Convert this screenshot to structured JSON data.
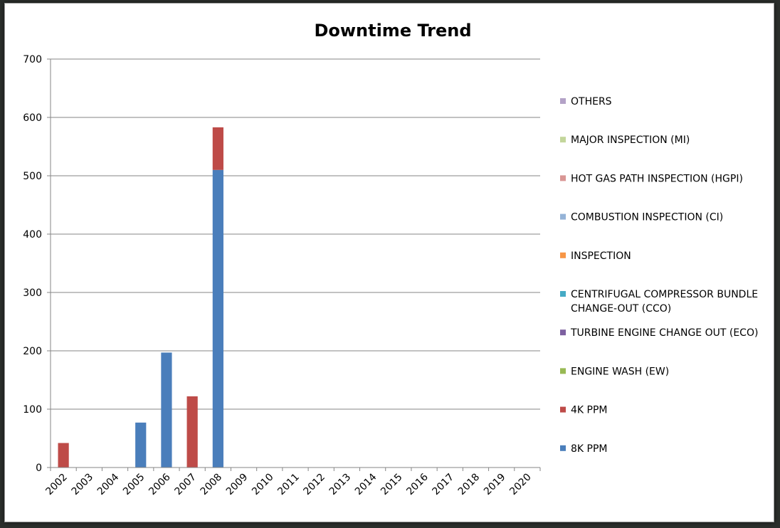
{
  "chart_data": {
    "type": "bar",
    "stacked": true,
    "title": "Downtime Trend",
    "xlabel": "",
    "ylabel": "",
    "ylim": [
      0,
      700
    ],
    "yticks": [
      0,
      100,
      200,
      300,
      400,
      500,
      600,
      700
    ],
    "grid": true,
    "legend_position": "right",
    "categories": [
      "2002",
      "2003",
      "2004",
      "2005",
      "2006",
      "2007",
      "2008",
      "2009",
      "2010",
      "2011",
      "2012",
      "2013",
      "2014",
      "2015",
      "2016",
      "2017",
      "2018",
      "2019",
      "2020"
    ],
    "series": [
      {
        "name": "8K PPM",
        "color": "#4a7ebb",
        "values": [
          0,
          0,
          0,
          77,
          197,
          0,
          510,
          0,
          0,
          0,
          0,
          0,
          0,
          0,
          0,
          0,
          0,
          0,
          0
        ]
      },
      {
        "name": "4K PPM",
        "color": "#be4b48",
        "values": [
          42,
          0,
          0,
          0,
          0,
          122,
          73,
          0,
          0,
          0,
          0,
          0,
          0,
          0,
          0,
          0,
          0,
          0,
          0
        ]
      },
      {
        "name": "ENGINE WASH (EW)",
        "color": "#98b954",
        "values": [
          0,
          0,
          0,
          0,
          0,
          0,
          0,
          0,
          0,
          0,
          0,
          0,
          0,
          0,
          0,
          0,
          0,
          0,
          0
        ]
      },
      {
        "name": "TURBINE ENGINE CHANGE OUT (ECO)",
        "color": "#7d60a0",
        "values": [
          0,
          0,
          0,
          0,
          0,
          0,
          0,
          0,
          0,
          0,
          0,
          0,
          0,
          0,
          0,
          0,
          0,
          0,
          0
        ]
      },
      {
        "name": "CENTRIFUGAL COMPRESSOR BUNDLE CHANGE-OUT (CCO)",
        "label_lines": [
          "CENTRIFUGAL COMPRESSOR BUNDLE",
          "CHANGE-OUT (CCO)"
        ],
        "color": "#46aac5",
        "values": [
          0,
          0,
          0,
          0,
          0,
          0,
          0,
          0,
          0,
          0,
          0,
          0,
          0,
          0,
          0,
          0,
          0,
          0,
          0
        ]
      },
      {
        "name": "INSPECTION",
        "color": "#f79646",
        "values": [
          0,
          0,
          0,
          0,
          0,
          0,
          0,
          0,
          0,
          0,
          0,
          0,
          0,
          0,
          0,
          0,
          0,
          0,
          0
        ]
      },
      {
        "name": "COMBUSTION INSPECTION (CI)",
        "color": "#95b3d7",
        "values": [
          0,
          0,
          0,
          0,
          0,
          0,
          0,
          0,
          0,
          0,
          0,
          0,
          0,
          0,
          0,
          0,
          0,
          0,
          0
        ]
      },
      {
        "name": "HOT GAS PATH INSPECTION (HGPI)",
        "color": "#d99694",
        "values": [
          0,
          0,
          0,
          0,
          0,
          0,
          0,
          0,
          0,
          0,
          0,
          0,
          0,
          0,
          0,
          0,
          0,
          0,
          0
        ]
      },
      {
        "name": "MAJOR INSPECTION (MI)",
        "color": "#c3d69b",
        "values": [
          0,
          0,
          0,
          0,
          0,
          0,
          0,
          0,
          0,
          0,
          0,
          0,
          0,
          0,
          0,
          0,
          0,
          0,
          0
        ]
      },
      {
        "name": "OTHERS",
        "color": "#b3a2c7",
        "values": [
          0,
          0,
          0,
          0,
          0,
          0,
          0,
          0,
          0,
          0,
          0,
          0,
          0,
          0,
          0,
          0,
          0,
          0,
          0
        ]
      }
    ]
  }
}
